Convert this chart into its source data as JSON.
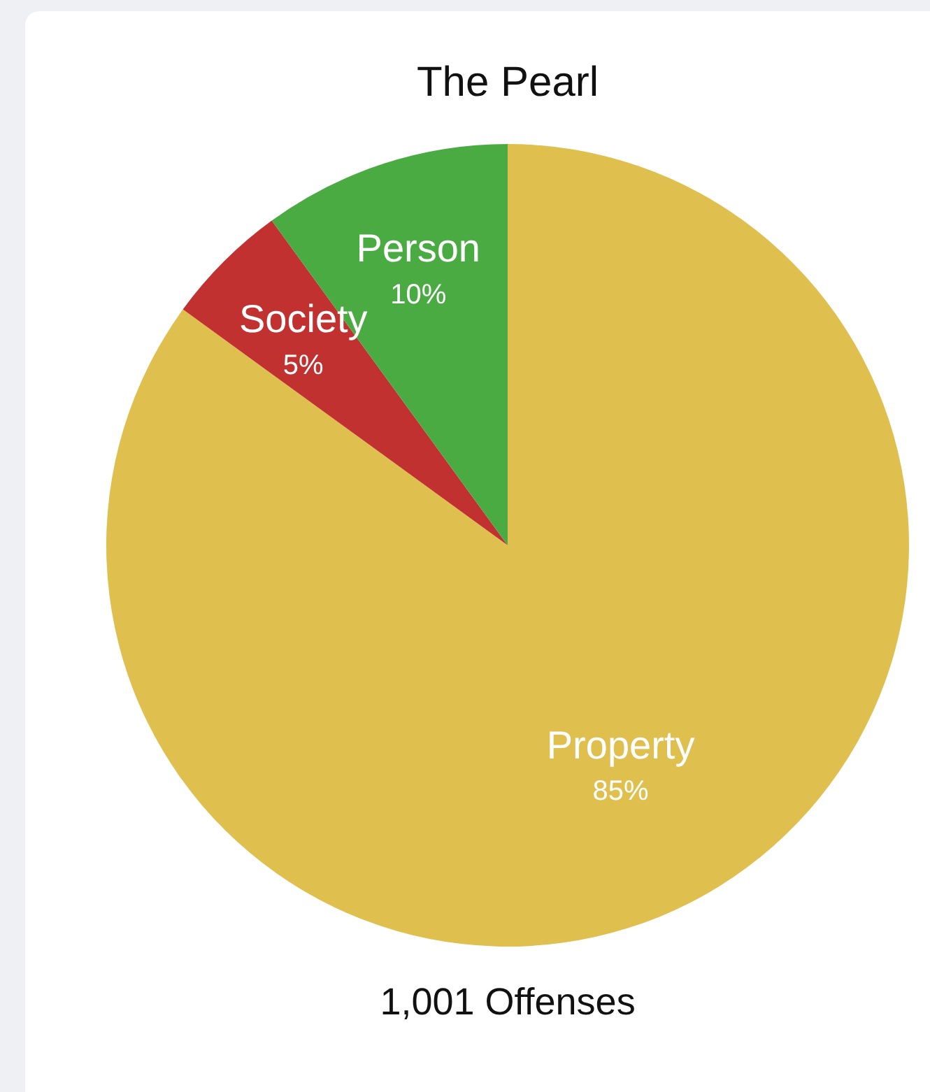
{
  "chart_data": {
    "type": "pie",
    "title": "The Pearl",
    "categories": [
      "Property",
      "Society",
      "Person"
    ],
    "values": [
      85,
      5,
      10
    ],
    "colors": [
      "#dfc04f",
      "#c0312f",
      "#4aab43"
    ],
    "value_labels": [
      "85%",
      "5%",
      "10%"
    ],
    "legend": false,
    "annotations": [
      "1,001 Offenses"
    ]
  }
}
